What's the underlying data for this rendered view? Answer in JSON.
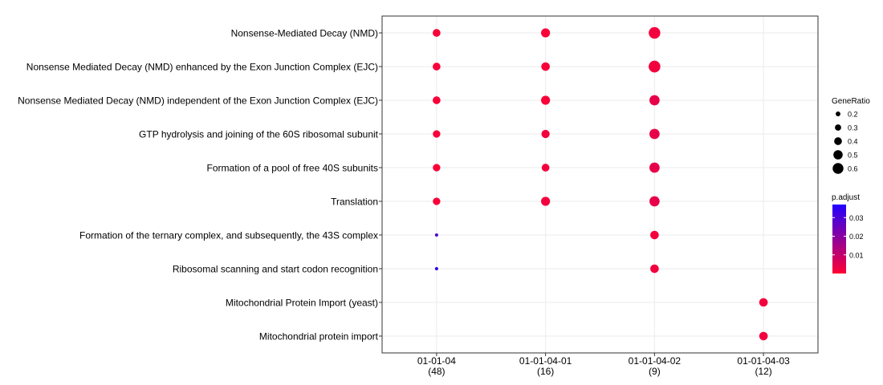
{
  "chart_data": {
    "type": "scatter",
    "title": "",
    "xlabel": "",
    "ylabel": "",
    "categories": [
      {
        "id": "01-01-04",
        "count": "(48)"
      },
      {
        "id": "01-01-04-01",
        "count": "(16)"
      },
      {
        "id": "01-01-04-02",
        "count": "(9)"
      },
      {
        "id": "01-01-04-03",
        "count": "(12)"
      }
    ],
    "terms": [
      "Nonsense-Mediated Decay (NMD)",
      "Nonsense Mediated Decay (NMD) enhanced by the Exon Junction Complex (EJC)",
      "Nonsense Mediated Decay (NMD) independent of the Exon Junction Complex (EJC)",
      "GTP hydrolysis and joining of the 60S ribosomal subunit",
      "Formation of a pool of free 40S subunits",
      "Translation",
      "Formation of the ternary complex, and subsequently, the 43S complex",
      "Ribosomal scanning and start codon recognition",
      "Mitochondrial Protein Import (yeast)",
      "Mitochondrial protein import"
    ],
    "points": [
      {
        "term": 0,
        "category": 0,
        "gene_ratio": 0.4,
        "p_adjust": 0.001
      },
      {
        "term": 0,
        "category": 1,
        "gene_ratio": 0.48,
        "p_adjust": 0.001
      },
      {
        "term": 0,
        "category": 2,
        "gene_ratio": 0.65,
        "p_adjust": 0.002
      },
      {
        "term": 1,
        "category": 0,
        "gene_ratio": 0.4,
        "p_adjust": 0.001
      },
      {
        "term": 1,
        "category": 1,
        "gene_ratio": 0.45,
        "p_adjust": 0.001
      },
      {
        "term": 1,
        "category": 2,
        "gene_ratio": 0.65,
        "p_adjust": 0.002
      },
      {
        "term": 1,
        "category": 2,
        "gene_ratio": 0.65,
        "p_adjust": 0.002
      },
      {
        "term": 2,
        "category": 0,
        "gene_ratio": 0.4,
        "p_adjust": 0.001
      },
      {
        "term": 2,
        "category": 1,
        "gene_ratio": 0.48,
        "p_adjust": 0.001
      },
      {
        "term": 2,
        "category": 2,
        "gene_ratio": 0.56,
        "p_adjust": 0.004
      },
      {
        "term": 3,
        "category": 0,
        "gene_ratio": 0.38,
        "p_adjust": 0.001
      },
      {
        "term": 3,
        "category": 1,
        "gene_ratio": 0.43,
        "p_adjust": 0.002
      },
      {
        "term": 3,
        "category": 2,
        "gene_ratio": 0.56,
        "p_adjust": 0.004
      },
      {
        "term": 4,
        "category": 0,
        "gene_ratio": 0.38,
        "p_adjust": 0.001
      },
      {
        "term": 4,
        "category": 1,
        "gene_ratio": 0.4,
        "p_adjust": 0.002
      },
      {
        "term": 4,
        "category": 2,
        "gene_ratio": 0.56,
        "p_adjust": 0.004
      },
      {
        "term": 5,
        "category": 0,
        "gene_ratio": 0.38,
        "p_adjust": 0.001
      },
      {
        "term": 5,
        "category": 1,
        "gene_ratio": 0.48,
        "p_adjust": 0.002
      },
      {
        "term": 5,
        "category": 2,
        "gene_ratio": 0.56,
        "p_adjust": 0.004
      },
      {
        "term": 6,
        "category": 0,
        "gene_ratio": 0.1,
        "p_adjust": 0.03
      },
      {
        "term": 6,
        "category": 2,
        "gene_ratio": 0.45,
        "p_adjust": 0.002
      },
      {
        "term": 7,
        "category": 0,
        "gene_ratio": 0.1,
        "p_adjust": 0.036
      },
      {
        "term": 7,
        "category": 2,
        "gene_ratio": 0.45,
        "p_adjust": 0.002
      },
      {
        "term": 8,
        "category": 3,
        "gene_ratio": 0.45,
        "p_adjust": 0.002
      },
      {
        "term": 9,
        "category": 3,
        "gene_ratio": 0.45,
        "p_adjust": 0.002
      }
    ],
    "size_legend": {
      "title": "GeneRatio",
      "values": [
        0.2,
        0.3,
        0.4,
        0.5,
        0.6
      ],
      "labels": [
        "0.2",
        "0.3",
        "0.4",
        "0.5",
        "0.6"
      ]
    },
    "color_legend": {
      "title": "p.adjust",
      "range": [
        0.0,
        0.037
      ],
      "ticks": [
        0.01,
        0.02,
        0.03
      ],
      "labels": [
        "0.01",
        "0.02",
        "0.03"
      ],
      "low_color": "#ff0033",
      "high_color": "#2200ff"
    },
    "grid": true,
    "legend_position": "right"
  }
}
